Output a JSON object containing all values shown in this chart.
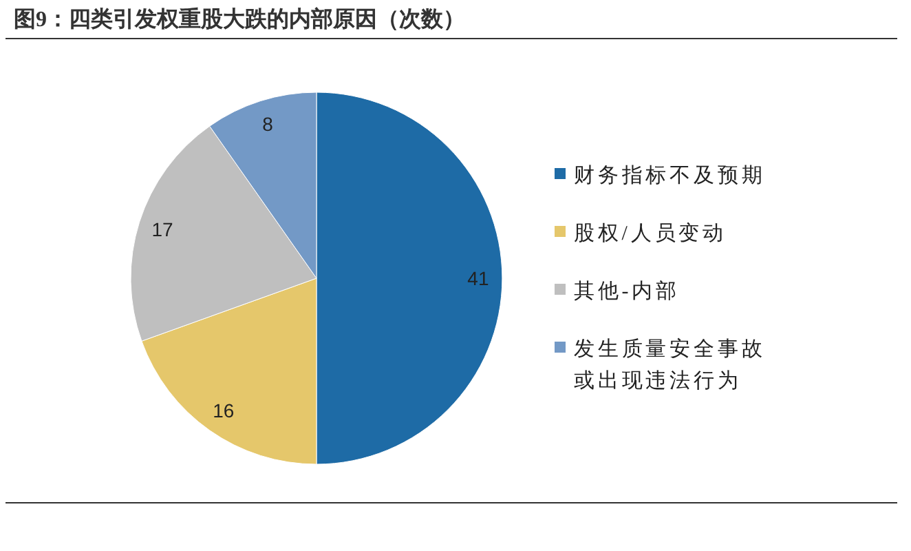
{
  "chart_data": {
    "type": "pie",
    "title": "图9：四类引发权重股大跌的内部原因（次数）",
    "categories": [
      "财务指标不及预期",
      "股权/人员变动",
      "其他-内部",
      "发生质量安全事故或出现违法行为"
    ],
    "values": [
      41,
      16,
      17,
      8
    ],
    "colors": [
      "#1e6ba6",
      "#e5c76b",
      "#bfbfbf",
      "#7399c6"
    ],
    "data_labels": true,
    "legend": "right"
  }
}
